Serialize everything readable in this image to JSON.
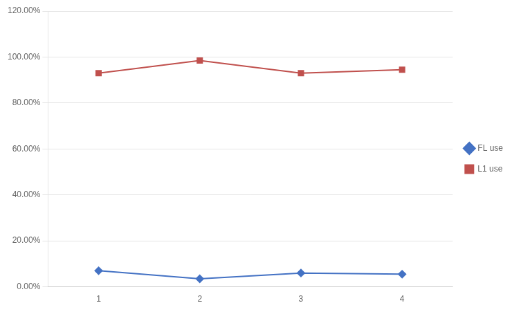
{
  "chart_data": {
    "type": "line",
    "x": [
      1,
      2,
      3,
      4
    ],
    "series": [
      {
        "name": "FL use",
        "color": "#4472C4",
        "marker": "diamond",
        "values": [
          0.07,
          0.035,
          0.06,
          0.055
        ]
      },
      {
        "name": "L1 use",
        "color": "#C0504D",
        "marker": "square",
        "values": [
          0.93,
          0.985,
          0.93,
          0.945
        ]
      }
    ],
    "xlim": [
      0.5,
      4.5
    ],
    "xticks": [
      1,
      2,
      3,
      4
    ],
    "ylim": [
      0.0,
      1.2
    ],
    "yticks": [
      {
        "value": 0.0,
        "label": "0.00%"
      },
      {
        "value": 0.2,
        "label": "20.00%"
      },
      {
        "value": 0.4,
        "label": "40.00%"
      },
      {
        "value": 0.6,
        "label": "60.00%"
      },
      {
        "value": 0.8,
        "label": "80.00%"
      },
      {
        "value": 1.0,
        "label": "100.00%"
      },
      {
        "value": 1.2,
        "label": "120.00%"
      }
    ],
    "grid": "y",
    "legend": "right"
  }
}
